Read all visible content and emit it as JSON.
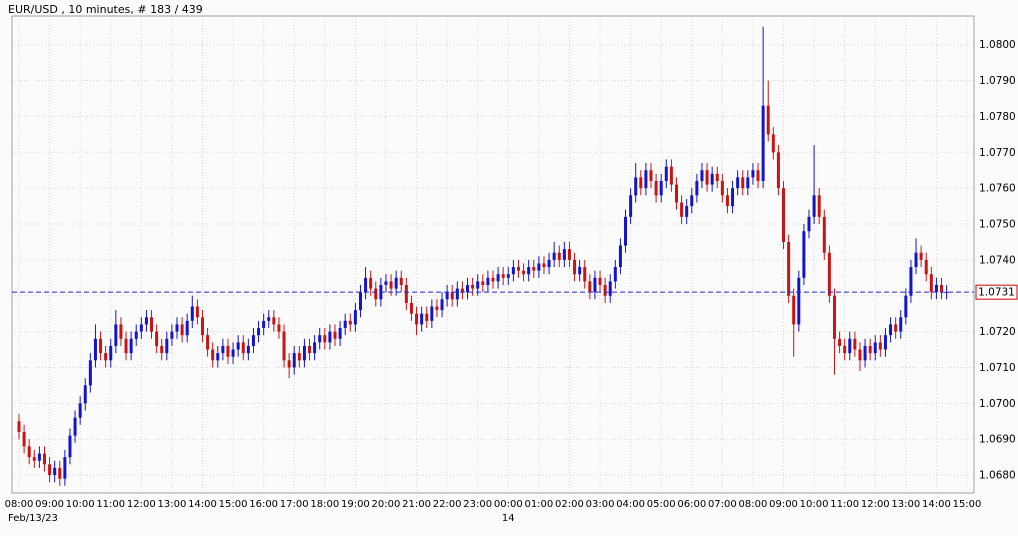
{
  "title": "EUR/USD , 10 minutes, # 183 / 439",
  "chart_data": {
    "type": "candlestick",
    "instrument": "EUR/USD",
    "timeframe": "10 minutes",
    "bar_counter": "# 183 / 439",
    "interval_minutes": 10,
    "start": "Feb/13/23 08:00",
    "bottom_left_label": "Feb/13/23",
    "date_label": "14",
    "date_label_hour_index": 16,
    "last_price": "1.0731",
    "open_first": 1.0695,
    "default_wick": 0.0002,
    "closes": [
      1.0692,
      1.0688,
      1.0685,
      1.0684,
      1.0686,
      1.0683,
      1.068,
      1.0682,
      1.0679,
      1.0685,
      1.0691,
      1.0696,
      1.07,
      1.0705,
      1.0712,
      1.0718,
      1.0714,
      1.0712,
      1.0716,
      1.0722,
      1.0718,
      1.0714,
      1.0718,
      1.072,
      1.0722,
      1.0724,
      1.072,
      1.0716,
      1.0714,
      1.0718,
      1.072,
      1.0722,
      1.0719,
      1.0723,
      1.0727,
      1.0724,
      1.0719,
      1.0715,
      1.0712,
      1.0714,
      1.0716,
      1.0713,
      1.0715,
      1.0717,
      1.0714,
      1.0716,
      1.0719,
      1.0721,
      1.0723,
      1.0724,
      1.0722,
      1.072,
      1.0712,
      1.071,
      1.0714,
      1.0712,
      1.0716,
      1.0714,
      1.0717,
      1.0719,
      1.0717,
      1.072,
      1.0718,
      1.0721,
      1.0723,
      1.0722,
      1.0726,
      1.0731,
      1.0735,
      1.0732,
      1.0729,
      1.0733,
      1.0734,
      1.0732,
      1.0735,
      1.0733,
      1.0728,
      1.0725,
      1.0722,
      1.0725,
      1.0723,
      1.0727,
      1.0726,
      1.0729,
      1.0731,
      1.0729,
      1.0732,
      1.0731,
      1.0733,
      1.0732,
      1.0734,
      1.0733,
      1.0735,
      1.0734,
      1.0736,
      1.0735,
      1.0736,
      1.0738,
      1.0737,
      1.0736,
      1.0738,
      1.0737,
      1.0739,
      1.0738,
      1.074,
      1.0742,
      1.074,
      1.0743,
      1.074,
      1.0736,
      1.0738,
      1.0734,
      1.0731,
      1.0735,
      1.0733,
      1.073,
      1.0734,
      1.0738,
      1.0744,
      1.0752,
      1.0758,
      1.0763,
      1.076,
      1.0765,
      1.0762,
      1.0758,
      1.0762,
      1.0766,
      1.0761,
      1.0756,
      1.0752,
      1.0755,
      1.0758,
      1.0762,
      1.0765,
      1.0761,
      1.0764,
      1.0762,
      1.0758,
      1.0755,
      1.076,
      1.0763,
      1.076,
      1.0763,
      1.0765,
      1.0762,
      1.0783,
      1.0775,
      1.077,
      1.076,
      1.0745,
      1.073,
      1.0722,
      1.0735,
      1.0748,
      1.0752,
      1.0758,
      1.0752,
      1.0742,
      1.073,
      1.0718,
      1.0716,
      1.0714,
      1.0718,
      1.0715,
      1.0712,
      1.0716,
      1.0714,
      1.0717,
      1.0715,
      1.0719,
      1.0722,
      1.072,
      1.0724,
      1.073,
      1.0738,
      1.0742,
      1.074,
      1.0736,
      1.0731,
      1.0733,
      1.0731,
      1.0731
    ],
    "wick_overrides": {
      "0": [
        1.0697,
        null
      ],
      "8": [
        null,
        1.0677
      ],
      "15": [
        1.0722,
        null
      ],
      "19": [
        1.0726,
        null
      ],
      "34": [
        1.073,
        null
      ],
      "53": [
        null,
        1.0707
      ],
      "68": [
        1.0738,
        null
      ],
      "78": [
        null,
        1.0719
      ],
      "105": [
        1.0745,
        null
      ],
      "121": [
        1.0767,
        null
      ],
      "123": [
        1.0767,
        null
      ],
      "127": [
        1.0768,
        null
      ],
      "131": [
        null,
        1.075
      ],
      "146": [
        1.0805,
        1.076
      ],
      "147": [
        1.079,
        null
      ],
      "152": [
        null,
        1.0713
      ],
      "156": [
        1.0772,
        null
      ],
      "160": [
        null,
        1.0708
      ],
      "165": [
        null,
        1.0709
      ],
      "176": [
        1.0746,
        null
      ]
    },
    "y_ticks": [
      "1.0800",
      "1.0790",
      "1.0780",
      "1.0770",
      "1.0760",
      "1.0750",
      "1.0740",
      "1.0730",
      "1.0720",
      "1.0710",
      "1.0700",
      "1.0690",
      "1.0680"
    ],
    "ylim": [
      1.0675,
      1.0808
    ],
    "x_labels": [
      "08:00",
      "09:00",
      "10:00",
      "11:00",
      "12:00",
      "13:00",
      "14:00",
      "15:00",
      "16:00",
      "17:00",
      "18:00",
      "19:00",
      "20:00",
      "21:00",
      "22:00",
      "23:00",
      "00:00",
      "01:00",
      "02:00",
      "03:00",
      "04:00",
      "05:00",
      "06:00",
      "07:00",
      "08:00",
      "09:00",
      "10:00",
      "11:00",
      "12:00",
      "13:00",
      "14:00",
      "15:00"
    ],
    "grid": true,
    "legend": "none",
    "colors": {
      "up": "#1414c8",
      "down": "#c81414",
      "grid": "#d9d9d9",
      "frame": "#a0a0a0",
      "text": "#000000",
      "last_price_line": "#2323cc",
      "last_price_box_border": "#cc0000",
      "last_price_box_fill": "#ffffff",
      "plot_background": "#fbfbfb"
    }
  }
}
